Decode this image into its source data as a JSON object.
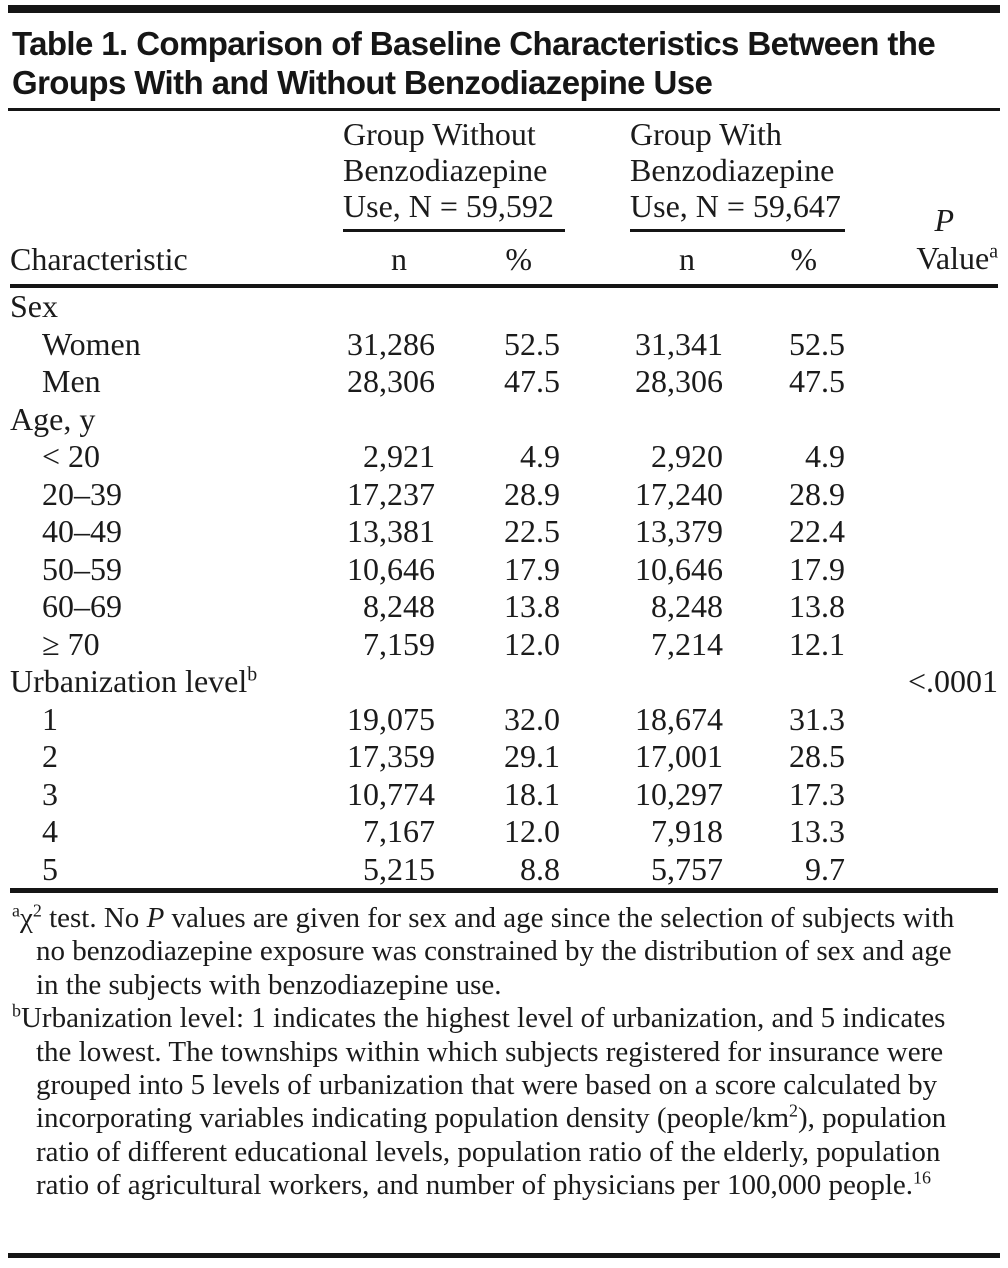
{
  "colors": {
    "background": "#ffffff",
    "text": "#1b1b1b",
    "rule": "#151515"
  },
  "page": {
    "title_lines": [
      "Table 1. Comparison of Baseline Characteristics Between the",
      "Groups With and Without Benzodiazepine Use"
    ]
  },
  "table": {
    "characteristic_header": "Characteristic",
    "group_without": {
      "lines": [
        "Group Without",
        "Benzodiazepine",
        "Use, N = 59,592"
      ]
    },
    "group_with": {
      "lines": [
        "Group With",
        "Benzodiazepine",
        "Use, N = 59,647"
      ]
    },
    "subheaders": {
      "n": "n",
      "percent": "%"
    },
    "p_header": {
      "line1": "P",
      "line2": "Value",
      "superscript": "a"
    },
    "rows": [
      {
        "label": "Sex",
        "indent": false,
        "n1": "",
        "pct1": "",
        "n2": "",
        "pct2": "",
        "p": ""
      },
      {
        "label": "Women",
        "indent": true,
        "n1": "31,286",
        "pct1": "52.5",
        "n2": "31,341",
        "pct2": "52.5",
        "p": ""
      },
      {
        "label": "Men",
        "indent": true,
        "n1": "28,306",
        "pct1": "47.5",
        "n2": "28,306",
        "pct2": "47.5",
        "p": ""
      },
      {
        "label": "Age, y",
        "indent": false,
        "n1": "",
        "pct1": "",
        "n2": "",
        "pct2": "",
        "p": ""
      },
      {
        "label": "< 20",
        "indent": true,
        "n1": "2,921",
        "pct1": "4.9",
        "n2": "2,920",
        "pct2": "4.9",
        "p": ""
      },
      {
        "label": "20–39",
        "indent": true,
        "n1": "17,237",
        "pct1": "28.9",
        "n2": "17,240",
        "pct2": "28.9",
        "p": ""
      },
      {
        "label": "40–49",
        "indent": true,
        "n1": "13,381",
        "pct1": "22.5",
        "n2": "13,379",
        "pct2": "22.4",
        "p": ""
      },
      {
        "label": "50–59",
        "indent": true,
        "n1": "10,646",
        "pct1": "17.9",
        "n2": "10,646",
        "pct2": "17.9",
        "p": ""
      },
      {
        "label": "60–69",
        "indent": true,
        "n1": "8,248",
        "pct1": "13.8",
        "n2": "8,248",
        "pct2": "13.8",
        "p": ""
      },
      {
        "label": "≥ 70",
        "indent": true,
        "n1": "7,159",
        "pct1": "12.0",
        "n2": "7,214",
        "pct2": "12.1",
        "p": ""
      },
      {
        "label": "Urbanization level",
        "sup": "b",
        "indent": false,
        "n1": "",
        "pct1": "",
        "n2": "",
        "pct2": "",
        "p": "<.0001"
      },
      {
        "label": "1",
        "indent": true,
        "n1": "19,075",
        "pct1": "32.0",
        "n2": "18,674",
        "pct2": "31.3",
        "p": ""
      },
      {
        "label": "2",
        "indent": true,
        "n1": "17,359",
        "pct1": "29.1",
        "n2": "17,001",
        "pct2": "28.5",
        "p": ""
      },
      {
        "label": "3",
        "indent": true,
        "n1": "10,774",
        "pct1": "18.1",
        "n2": "10,297",
        "pct2": "17.3",
        "p": ""
      },
      {
        "label": "4",
        "indent": true,
        "n1": "7,167",
        "pct1": "12.0",
        "n2": "7,918",
        "pct2": "13.3",
        "p": ""
      },
      {
        "label": "5",
        "indent": true,
        "n1": "5,215",
        "pct1": "8.8",
        "n2": "5,757",
        "pct2": "9.7",
        "p": ""
      }
    ]
  },
  "footnotes": {
    "footnote_a": {
      "marker": "a",
      "chi": "χ",
      "chi_exponent": "2",
      "segment_1": " test. No ",
      "p_italic": "P",
      "segment_2": " values are given for sex and age since the selection of subjects with no benzodiazepine exposure was constrained by the distribution of sex and age in the subjects with benzodiazepine use."
    },
    "footnote_b": {
      "marker": "b",
      "segment_1": "Urbanization level: 1 indicates the highest level of urbanization, and 5 indicates the lowest. The townships within which subjects registered for insurance were grouped into 5 levels of urbanization that were based on a score calculated by incorporating variables indicating population density (people/km",
      "km_exponent": "2",
      "segment_2": "), population ratio of different educational levels, population ratio of the elderly, population ratio of agricultural workers, and number of physicians per 100,000 people.",
      "reference": "16"
    }
  }
}
